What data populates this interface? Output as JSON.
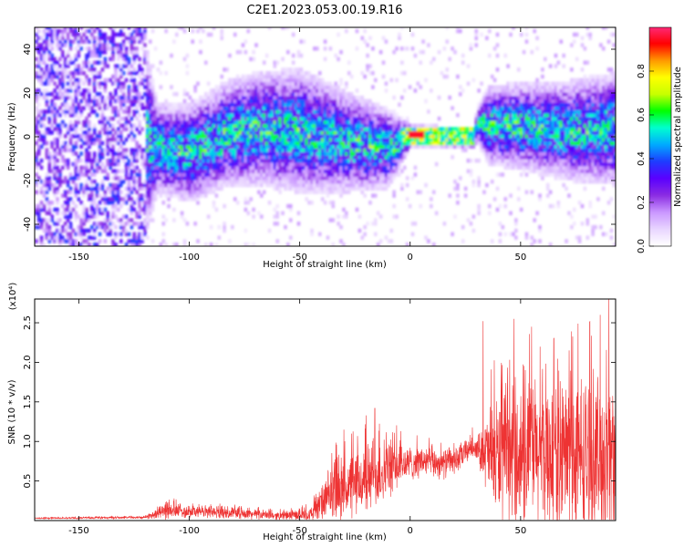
{
  "title": "C2E1.2023.053.00.19.R16",
  "colors": {
    "snr_line": "#ee3333",
    "colormap": [
      "#ffffff",
      "#e8d4ff",
      "#c996ff",
      "#8a2be2",
      "#5a00ff",
      "#1e3cff",
      "#00aaff",
      "#00ffd0",
      "#00ff00",
      "#c8ff00",
      "#ffff00",
      "#ff9900",
      "#ff0000",
      "#ff2a7a"
    ]
  },
  "chart_data": [
    {
      "type": "heatmap",
      "title": "",
      "xlabel": "Height of straight line (km)",
      "ylabel": "Frequency (Hz)",
      "xlim": [
        -170,
        93
      ],
      "ylim": [
        -50,
        50
      ],
      "xticks": [
        -150,
        -100,
        -50,
        0,
        50
      ],
      "yticks": [
        -40,
        -20,
        0,
        20,
        40
      ],
      "xtick_labels": [
        "-150",
        "-100",
        "-50",
        "0",
        "50"
      ],
      "ytick_labels": [
        "-40",
        "-20",
        "0",
        "20",
        "40"
      ],
      "colorbar": {
        "label": "Normalized spectral amplitude",
        "range": [
          0.0,
          1.0
        ],
        "ticks": [
          0.0,
          0.2,
          0.4,
          0.6,
          0.8
        ],
        "tick_labels": [
          "0.0",
          "0.2",
          "0.4",
          "0.6",
          "0.8"
        ]
      },
      "centerline": [
        {
          "x": -170,
          "f": 0
        },
        {
          "x": -125,
          "f": 2
        },
        {
          "x": -115,
          "f": -6
        },
        {
          "x": -100,
          "f": -8
        },
        {
          "x": -85,
          "f": 0
        },
        {
          "x": -70,
          "f": 3
        },
        {
          "x": -50,
          "f": 2
        },
        {
          "x": -30,
          "f": -3
        },
        {
          "x": -10,
          "f": -6
        },
        {
          "x": 0,
          "f": 0
        },
        {
          "x": 15,
          "f": -1
        },
        {
          "x": 28,
          "f": -1
        },
        {
          "x": 30,
          "f": 5
        },
        {
          "x": 50,
          "f": 4
        },
        {
          "x": 70,
          "f": 2
        },
        {
          "x": 93,
          "f": 3
        }
      ],
      "band_halfwidth": [
        {
          "x": -170,
          "w": 50
        },
        {
          "x": -125,
          "w": 50
        },
        {
          "x": -115,
          "w": 16
        },
        {
          "x": -50,
          "w": 22
        },
        {
          "x": -10,
          "w": 14
        },
        {
          "x": 0,
          "w": 4
        },
        {
          "x": 28,
          "w": 4
        },
        {
          "x": 35,
          "w": 14
        },
        {
          "x": 93,
          "w": 20
        }
      ],
      "peak_region": {
        "x": [
          -5,
          28
        ],
        "f": [
          -4,
          4
        ],
        "peak_value": 0.95
      }
    },
    {
      "type": "line",
      "title": "",
      "xlabel": "Height of straight line (km)",
      "ylabel": "SNR (10 * v/v)",
      "y_multiplier": "(x10⁴)",
      "xlim": [
        -170,
        93
      ],
      "ylim": [
        0,
        2.8
      ],
      "xticks": [
        -150,
        -100,
        -50,
        0,
        50
      ],
      "yticks": [
        0.5,
        1.0,
        1.5,
        2.0,
        2.5
      ],
      "xtick_labels": [
        "-150",
        "-100",
        "-50",
        "0",
        "50"
      ],
      "ytick_labels": [
        "0.5",
        "1.0",
        "1.5",
        "2.0",
        "2.5"
      ],
      "baseline": [
        {
          "x": -170,
          "y": 0.03
        },
        {
          "x": -120,
          "y": 0.04
        },
        {
          "x": -112,
          "y": 0.12
        },
        {
          "x": -100,
          "y": 0.12
        },
        {
          "x": -80,
          "y": 0.1
        },
        {
          "x": -60,
          "y": 0.06
        },
        {
          "x": -45,
          "y": 0.08
        },
        {
          "x": -35,
          "y": 0.35
        },
        {
          "x": -25,
          "y": 0.45
        },
        {
          "x": -15,
          "y": 0.6
        },
        {
          "x": -5,
          "y": 0.7
        },
        {
          "x": 5,
          "y": 0.75
        },
        {
          "x": 15,
          "y": 0.72
        },
        {
          "x": 22,
          "y": 0.78
        },
        {
          "x": 28,
          "y": 0.95
        },
        {
          "x": 32,
          "y": 0.88
        },
        {
          "x": 40,
          "y": 0.8
        },
        {
          "x": 60,
          "y": 0.85
        },
        {
          "x": 80,
          "y": 0.8
        },
        {
          "x": 93,
          "y": 0.85
        }
      ],
      "spread": [
        {
          "x": -170,
          "s": 0.01
        },
        {
          "x": -120,
          "s": 0.02
        },
        {
          "x": -112,
          "s": 0.12
        },
        {
          "x": -60,
          "s": 0.06
        },
        {
          "x": -45,
          "s": 0.1
        },
        {
          "x": -35,
          "s": 0.45
        },
        {
          "x": -15,
          "s": 0.55
        },
        {
          "x": 0,
          "s": 0.25
        },
        {
          "x": 25,
          "s": 0.2
        },
        {
          "x": 30,
          "s": 0.15
        },
        {
          "x": 38,
          "s": 0.9
        },
        {
          "x": 60,
          "s": 1.2
        },
        {
          "x": 93,
          "s": 1.3
        }
      ],
      "peaks": [
        {
          "x": -30,
          "y": 1.15
        },
        {
          "x": -20,
          "y": 1.33
        },
        {
          "x": -16,
          "y": 1.42
        },
        {
          "x": 33,
          "y": 2.52
        },
        {
          "x": 47,
          "y": 2.55
        },
        {
          "x": 55,
          "y": 2.45
        },
        {
          "x": 65,
          "y": 2.3
        },
        {
          "x": 72,
          "y": 2.15
        },
        {
          "x": 86,
          "y": 2.6
        },
        {
          "x": 90,
          "y": 2.8
        }
      ]
    }
  ]
}
